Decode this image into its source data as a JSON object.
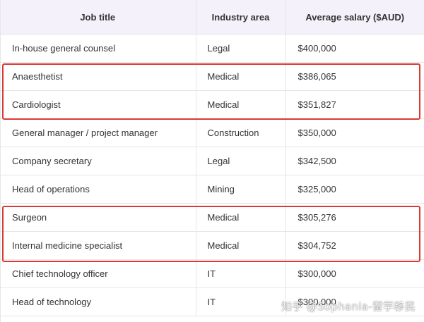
{
  "table": {
    "headers": [
      "Job title",
      "Industry area",
      "Average salary ($AUD)"
    ],
    "rows": [
      [
        "In-house general counsel",
        "Legal",
        "$400,000"
      ],
      [
        "Anaesthetist",
        "Medical",
        "$386,065"
      ],
      [
        "Cardiologist",
        "Medical",
        "$351,827"
      ],
      [
        "General manager / project manager",
        "Construction",
        "$350,000"
      ],
      [
        "Company secretary",
        "Legal",
        "$342,500"
      ],
      [
        "Head of operations",
        "Mining",
        "$325,000"
      ],
      [
        "Surgeon",
        "Medical",
        "$305,276"
      ],
      [
        "Internal medicine specialist",
        "Medical",
        "$304,752"
      ],
      [
        "Chief technology officer",
        "IT",
        "$300,000"
      ],
      [
        "Head of technology",
        "IT",
        "$300,000"
      ]
    ]
  },
  "highlight_color": "#d93a35",
  "header_bg": "#f5f1fa",
  "watermark": "知乎 @Sophania-留学移民"
}
